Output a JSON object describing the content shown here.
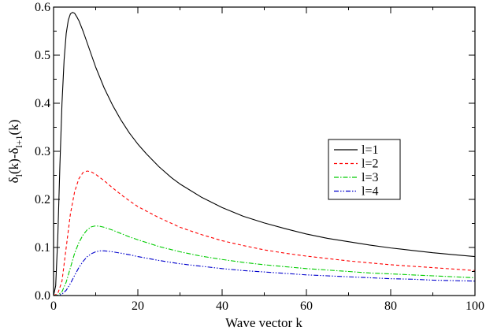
{
  "chart_data": {
    "type": "line",
    "title": "",
    "xlabel": "Wave vector k",
    "ylabel": {
      "main": "δ",
      "sub1": "l",
      "mid": "(k)-δ",
      "sub2": "l+1",
      "end": "(k)"
    },
    "xlim": [
      0,
      100
    ],
    "ylim": [
      0,
      0.6
    ],
    "x_ticks": [
      0,
      20,
      40,
      60,
      80,
      100
    ],
    "x_tick_labels": [
      "0",
      "20",
      "40",
      "60",
      "80",
      "100"
    ],
    "y_ticks": [
      0,
      0.1,
      0.2,
      0.3,
      0.4,
      0.5,
      0.6
    ],
    "y_tick_labels": [
      "0.0",
      "0.1",
      "0.2",
      "0.3",
      "0.4",
      "0.5",
      "0.6"
    ],
    "grid": false,
    "legend": {
      "position": "right-middle",
      "box": true
    },
    "series": [
      {
        "name": "l=1",
        "color": "#000000",
        "dash": "solid",
        "x": [
          0,
          0.5,
          1,
          1.5,
          2,
          2.5,
          3,
          3.5,
          4,
          4.5,
          5,
          5.5,
          6,
          7,
          8,
          9,
          10,
          12,
          14,
          16,
          18,
          20,
          22,
          25,
          28,
          30,
          35,
          40,
          45,
          50,
          55,
          60,
          65,
          70,
          75,
          80,
          85,
          90,
          95,
          100
        ],
        "y": [
          0,
          0.02,
          0.12,
          0.27,
          0.4,
          0.49,
          0.545,
          0.573,
          0.586,
          0.589,
          0.587,
          0.58,
          0.572,
          0.55,
          0.525,
          0.5,
          0.475,
          0.432,
          0.396,
          0.365,
          0.338,
          0.315,
          0.295,
          0.268,
          0.245,
          0.232,
          0.205,
          0.183,
          0.165,
          0.151,
          0.139,
          0.128,
          0.119,
          0.112,
          0.105,
          0.099,
          0.094,
          0.089,
          0.085,
          0.081
        ]
      },
      {
        "name": "l=2",
        "color": "#ff0000",
        "dash": "dashed",
        "x": [
          0,
          1,
          2,
          3,
          4,
          5,
          6,
          7,
          8,
          9,
          10,
          12,
          14,
          16,
          18,
          20,
          25,
          30,
          35,
          40,
          45,
          50,
          55,
          60,
          65,
          70,
          75,
          80,
          85,
          90,
          95,
          100
        ],
        "y": [
          0,
          0.004,
          0.03,
          0.1,
          0.17,
          0.216,
          0.243,
          0.256,
          0.259,
          0.257,
          0.252,
          0.239,
          0.224,
          0.21,
          0.197,
          0.185,
          0.162,
          0.142,
          0.127,
          0.114,
          0.104,
          0.095,
          0.088,
          0.082,
          0.077,
          0.072,
          0.068,
          0.064,
          0.061,
          0.058,
          0.055,
          0.052
        ]
      },
      {
        "name": "l=3",
        "color": "#00cc00",
        "dash": "dashdot",
        "x": [
          0,
          1,
          2,
          3,
          4,
          5,
          6,
          7,
          8,
          9,
          10,
          11,
          12,
          14,
          16,
          18,
          20,
          25,
          30,
          35,
          40,
          45,
          50,
          55,
          60,
          65,
          70,
          75,
          80,
          85,
          90,
          95,
          100
        ],
        "y": [
          0,
          0.001,
          0.008,
          0.028,
          0.058,
          0.088,
          0.11,
          0.126,
          0.137,
          0.143,
          0.145,
          0.144,
          0.142,
          0.136,
          0.129,
          0.122,
          0.116,
          0.102,
          0.091,
          0.082,
          0.075,
          0.069,
          0.064,
          0.06,
          0.056,
          0.053,
          0.05,
          0.047,
          0.045,
          0.043,
          0.041,
          0.039,
          0.037
        ]
      },
      {
        "name": "l=4",
        "color": "#0000cc",
        "dash": "dashdotdot",
        "x": [
          0,
          1,
          2,
          3,
          4,
          5,
          6,
          7,
          8,
          9,
          10,
          11,
          12,
          13,
          14,
          16,
          18,
          20,
          25,
          30,
          35,
          40,
          45,
          50,
          55,
          60,
          65,
          70,
          75,
          80,
          85,
          90,
          95,
          100
        ],
        "y": [
          0,
          0.0004,
          0.003,
          0.011,
          0.025,
          0.042,
          0.058,
          0.071,
          0.081,
          0.087,
          0.091,
          0.093,
          0.093,
          0.092,
          0.091,
          0.088,
          0.085,
          0.081,
          0.073,
          0.066,
          0.061,
          0.056,
          0.052,
          0.049,
          0.046,
          0.043,
          0.041,
          0.039,
          0.037,
          0.035,
          0.034,
          0.032,
          0.031,
          0.03
        ]
      }
    ]
  }
}
